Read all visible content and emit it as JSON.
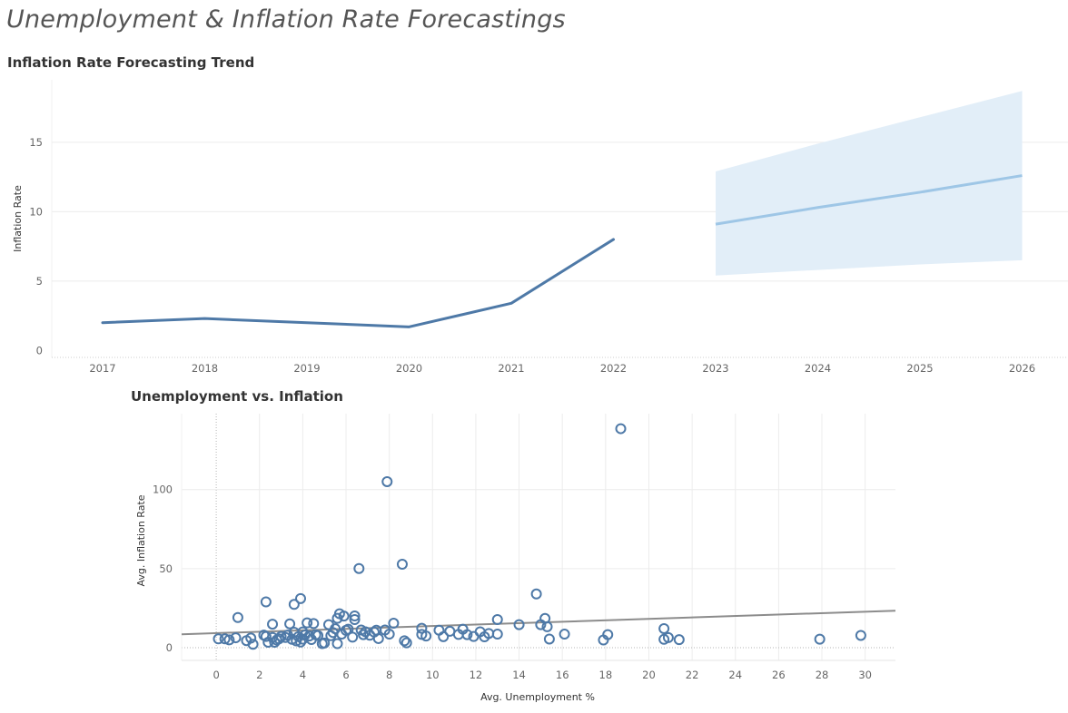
{
  "dashboard": {
    "title": "Unemployment & Inflation Rate Forecastings"
  },
  "colors": {
    "actual_line": "#4e79a7",
    "forecast_line": "#9ec6e6",
    "forecast_band": "#e2eef8",
    "scatter_marker": "#4e79a7",
    "trend_line": "#8c8c8c",
    "grid": "#ececec"
  },
  "chart_data": [
    {
      "type": "line",
      "title": "Inflation Rate Forecasting Trend",
      "ylabel": "Inflation Rate",
      "xlabel": "",
      "ylim": [
        -0.5,
        19.5
      ],
      "yticks": [
        0,
        5,
        10,
        15
      ],
      "x_ticks": [
        "2017",
        "2018",
        "2019",
        "2020",
        "2021",
        "2022",
        "2023",
        "2024",
        "2025",
        "2026"
      ],
      "grid": true,
      "series": [
        {
          "role": "actual",
          "x": [
            2017,
            2018,
            2019,
            2020,
            2021,
            2022
          ],
          "values": [
            2.0,
            2.3,
            2.0,
            1.7,
            3.4,
            8.0
          ]
        },
        {
          "role": "forecast",
          "x": [
            2023,
            2024,
            2025,
            2026
          ],
          "values": [
            9.1,
            10.3,
            11.4,
            12.6
          ],
          "lower": [
            5.4,
            5.8,
            6.2,
            6.5
          ],
          "upper": [
            12.9,
            14.9,
            16.8,
            18.7
          ]
        }
      ]
    },
    {
      "type": "scatter",
      "title": "Unemployment vs. Inflation",
      "xlabel": "Avg. Unemployment %",
      "ylabel": "Avg. Inflation Rate",
      "xlim": [
        -1.6,
        31.4
      ],
      "ylim": [
        -8,
        148
      ],
      "xticks": [
        0,
        2,
        4,
        6,
        8,
        10,
        12,
        14,
        16,
        18,
        20,
        22,
        24,
        26,
        28,
        30
      ],
      "yticks": [
        0,
        50,
        100
      ],
      "grid": true,
      "trend_line": {
        "x": [
          -1.6,
          31.4
        ],
        "y": [
          8.5,
          23.4
        ]
      },
      "points": [
        [
          0.1,
          5.6
        ],
        [
          0.4,
          5.6
        ],
        [
          0.6,
          5.0
        ],
        [
          0.9,
          6.3
        ],
        [
          1.0,
          19.1
        ],
        [
          1.4,
          4.5
        ],
        [
          1.6,
          6.1
        ],
        [
          1.7,
          2.2
        ],
        [
          2.2,
          8.0
        ],
        [
          2.3,
          7.1
        ],
        [
          2.3,
          29.0
        ],
        [
          2.4,
          3.5
        ],
        [
          2.6,
          6.5
        ],
        [
          2.6,
          14.9
        ],
        [
          2.7,
          3.5
        ],
        [
          2.8,
          4.9
        ],
        [
          2.9,
          5.6
        ],
        [
          3.0,
          7.1
        ],
        [
          3.2,
          6.5
        ],
        [
          3.3,
          8.0
        ],
        [
          3.4,
          15.1
        ],
        [
          3.5,
          5.3
        ],
        [
          3.6,
          27.4
        ],
        [
          3.6,
          9.8
        ],
        [
          3.7,
          4.3
        ],
        [
          3.8,
          7.0
        ],
        [
          3.9,
          31.1
        ],
        [
          3.9,
          3.6
        ],
        [
          4.0,
          5.4
        ],
        [
          4.0,
          10.0
        ],
        [
          4.1,
          8.0
        ],
        [
          4.2,
          15.7
        ],
        [
          4.3,
          7.4
        ],
        [
          4.4,
          5.2
        ],
        [
          4.5,
          15.3
        ],
        [
          4.6,
          8.2
        ],
        [
          4.7,
          7.7
        ],
        [
          4.9,
          2.6
        ],
        [
          5.0,
          3.0
        ],
        [
          5.2,
          14.6
        ],
        [
          5.3,
          7.6
        ],
        [
          5.4,
          9.6
        ],
        [
          5.5,
          12.0
        ],
        [
          5.6,
          18.6
        ],
        [
          5.6,
          2.6
        ],
        [
          5.7,
          21.5
        ],
        [
          5.8,
          8.6
        ],
        [
          5.9,
          20.0
        ],
        [
          6.0,
          11.0
        ],
        [
          6.1,
          11.7
        ],
        [
          6.3,
          6.7
        ],
        [
          6.4,
          17.8
        ],
        [
          6.4,
          20.1
        ],
        [
          6.6,
          50.1
        ],
        [
          6.7,
          11.2
        ],
        [
          6.8,
          8.3
        ],
        [
          6.9,
          10.1
        ],
        [
          7.1,
          7.9
        ],
        [
          7.3,
          9.9
        ],
        [
          7.4,
          11.1
        ],
        [
          7.5,
          5.8
        ],
        [
          7.8,
          11.2
        ],
        [
          7.9,
          105.0
        ],
        [
          8.0,
          8.6
        ],
        [
          8.2,
          15.5
        ],
        [
          8.6,
          52.8
        ],
        [
          8.7,
          4.4
        ],
        [
          8.8,
          3.1
        ],
        [
          9.5,
          12.3
        ],
        [
          9.5,
          8.4
        ],
        [
          9.7,
          7.4
        ],
        [
          10.3,
          11.1
        ],
        [
          10.5,
          7.0
        ],
        [
          10.8,
          10.4
        ],
        [
          11.2,
          8.4
        ],
        [
          11.4,
          11.7
        ],
        [
          11.6,
          8.3
        ],
        [
          11.9,
          7.1
        ],
        [
          12.2,
          10.1
        ],
        [
          12.4,
          6.9
        ],
        [
          12.6,
          9.0
        ],
        [
          13.0,
          17.8
        ],
        [
          13.0,
          8.6
        ],
        [
          14.0,
          14.6
        ],
        [
          14.8,
          34.0
        ],
        [
          15.0,
          14.6
        ],
        [
          15.2,
          18.5
        ],
        [
          15.3,
          13.3
        ],
        [
          15.4,
          5.5
        ],
        [
          16.1,
          8.6
        ],
        [
          17.9,
          4.9
        ],
        [
          18.1,
          8.3
        ],
        [
          18.7,
          138.5
        ],
        [
          20.7,
          12.1
        ],
        [
          20.7,
          5.3
        ],
        [
          20.9,
          6.4
        ],
        [
          21.4,
          5.1
        ],
        [
          27.9,
          5.4
        ],
        [
          29.8,
          7.8
        ]
      ]
    }
  ]
}
